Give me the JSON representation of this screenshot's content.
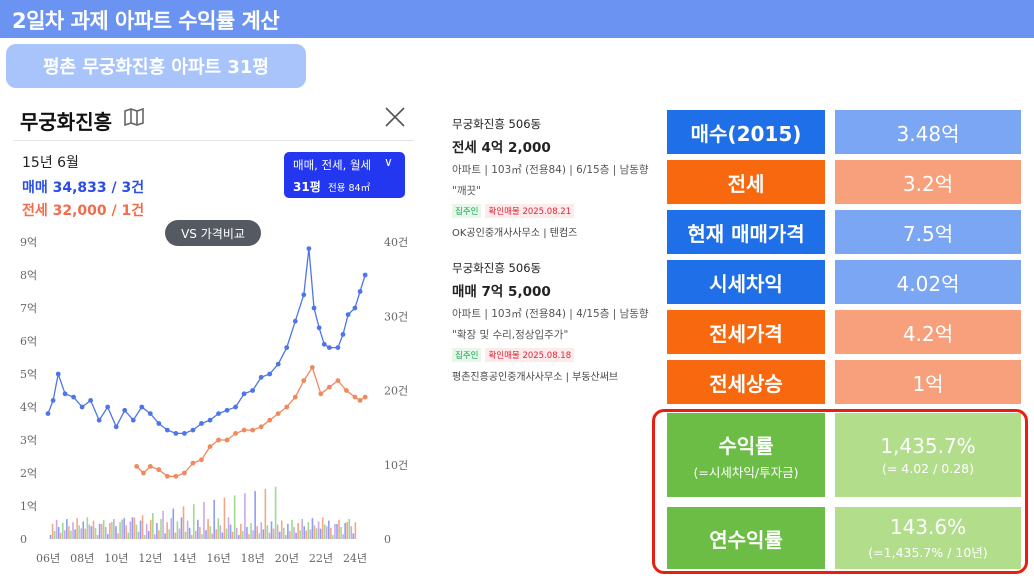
{
  "header": {
    "title": "2일차 과제 아파트 수익률 계산"
  },
  "subtitle": "평촌 무궁화진흥 아파트 31평",
  "panel": {
    "title": "무궁화진흥",
    "period": "15년 6월",
    "sale": "매매 34,833 / 3건",
    "jeonse": "전세 32,000 / 1건",
    "filter": {
      "types": "매매, 전세, 월세",
      "size": "31평",
      "area": "전용 84㎡"
    },
    "compare_button": "VS 가격비교"
  },
  "chart_data": {
    "type": "line",
    "y_left_ticks": [
      "9억",
      "8억",
      "7억",
      "6억",
      "5억",
      "4억",
      "3억",
      "2억",
      "1억",
      "0"
    ],
    "y_right_ticks": [
      "40건",
      "30건",
      "20건",
      "10건",
      "0"
    ],
    "x_ticks": [
      "06년",
      "08년",
      "10년",
      "12년",
      "14년",
      "16년",
      "18년",
      "20년",
      "22년",
      "24년"
    ],
    "y_range": [
      0,
      9
    ],
    "count_range": [
      0,
      40
    ],
    "series": [
      {
        "color": "#4f76e8",
        "x": [
          2006.0,
          2006.3,
          2006.6,
          2007,
          2007.5,
          2008,
          2008.5,
          2009,
          2009.5,
          2010,
          2010.5,
          2011,
          2011.5,
          2012,
          2012.5,
          2013,
          2013.5,
          2014,
          2014.5,
          2015,
          2015.5,
          2016,
          2016.5,
          2017,
          2017.5,
          2018,
          2018.5,
          2019,
          2019.5,
          2020,
          2020.5,
          2021,
          2021.3,
          2021.6,
          2021.9,
          2022.2,
          2022.5,
          2023,
          2023.3,
          2023.6,
          2024,
          2024.3,
          2024.6
        ],
        "y": [
          3.8,
          4.2,
          5.0,
          4.4,
          4.3,
          4.0,
          4.2,
          3.6,
          4.0,
          3.4,
          3.9,
          3.6,
          4.0,
          3.8,
          3.5,
          3.3,
          3.2,
          3.2,
          3.3,
          3.5,
          3.6,
          3.8,
          3.9,
          4.0,
          4.4,
          4.5,
          4.9,
          5.0,
          5.3,
          5.8,
          6.6,
          7.4,
          8.8,
          7.0,
          6.4,
          5.9,
          5.8,
          5.8,
          6.2,
          6.8,
          7.0,
          7.5,
          8.0
        ]
      },
      {
        "color": "#f08a5e",
        "x": [
          2011.2,
          2011.6,
          2012,
          2012.5,
          2013,
          2013.5,
          2014,
          2014.5,
          2015,
          2015.5,
          2016,
          2016.5,
          2017,
          2017.5,
          2018,
          2018.5,
          2019,
          2019.5,
          2020,
          2020.5,
          2021,
          2021.5,
          2022,
          2022.5,
          2023,
          2023.5,
          2024,
          2024.3,
          2024.6
        ],
        "y": [
          2.2,
          2.0,
          2.2,
          2.1,
          1.9,
          1.9,
          2.0,
          2.3,
          2.4,
          2.8,
          3.0,
          3.0,
          3.2,
          3.3,
          3.3,
          3.4,
          3.6,
          3.8,
          4.0,
          4.3,
          4.8,
          5.2,
          4.4,
          4.6,
          4.8,
          4.5,
          4.3,
          4.2,
          4.3
        ]
      }
    ]
  },
  "listings": [
    {
      "name": "무궁화진흥 506동",
      "price": "전세 4억 2,000",
      "spec": "아파트 | 103㎡ (전용84) | 6/15층 | 남동향",
      "note": "\"깨끗\"",
      "tag1": "집주인",
      "tag2": "확인매물 2025.08.21",
      "agent": "OK공인중개사사무소 | 텐컴즈"
    },
    {
      "name": "무궁화진흥 506동",
      "price": "매매 7억 5,000",
      "spec": "아파트 | 103㎡ (전용84) | 4/15층 | 남동향",
      "note": "\"확장 및 수리,정상입주가\"",
      "tag1": "집주인",
      "tag2": "확인매물 2025.08.18",
      "agent": "평촌진흥공인중개사사무소 | 부동산써브"
    }
  ],
  "table": [
    {
      "label": "매수(2015)",
      "value": "3.48억"
    },
    {
      "label": "전세",
      "value": "3.2억"
    },
    {
      "label": "현재 매매가격",
      "value": "7.5억"
    },
    {
      "label": "시세차익",
      "value": "4.02억"
    },
    {
      "label": "전세가격",
      "value": "4.2억"
    },
    {
      "label": "전세상승",
      "value": "1억"
    },
    {
      "label": "수익률",
      "label_sub": "(=시세차익/투자금)",
      "value": "1,435.7%",
      "value_sub": "(= 4.02 / 0.28)"
    },
    {
      "label": "연수익률",
      "value": "143.6%",
      "value_sub": "(=1,435.7% / 10년)"
    }
  ]
}
